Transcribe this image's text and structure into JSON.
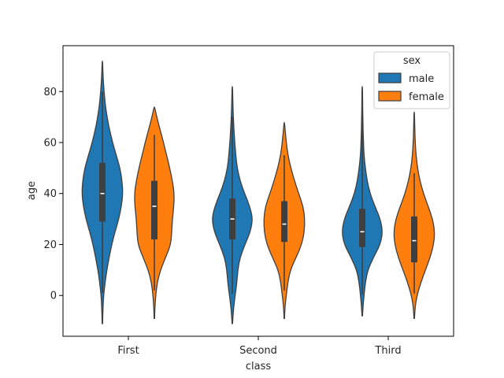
{
  "chart_data": {
    "type": "violin",
    "xlabel": "class",
    "ylabel": "age",
    "ylim": [
      -16,
      98
    ],
    "yticks": [
      0,
      20,
      40,
      60,
      80
    ],
    "categories": [
      "First",
      "Second",
      "Third"
    ],
    "legend": {
      "title": "sex",
      "position": "top-right"
    },
    "series": [
      {
        "name": "male",
        "color": "#1f77b4",
        "violins": [
          {
            "category": "First",
            "min": -11,
            "max": 92,
            "q1": 29,
            "median": 40,
            "q3": 52,
            "whisker_low": 0.92,
            "whisker_high": 80,
            "profile": [
              [
                -11,
                0.01
              ],
              [
                -5,
                0.03
              ],
              [
                0,
                0.06
              ],
              [
                5,
                0.13
              ],
              [
                10,
                0.22
              ],
              [
                15,
                0.33
              ],
              [
                20,
                0.46
              ],
              [
                25,
                0.62
              ],
              [
                30,
                0.8
              ],
              [
                35,
                0.93
              ],
              [
                40,
                1.0
              ],
              [
                45,
                0.96
              ],
              [
                50,
                0.86
              ],
              [
                55,
                0.68
              ],
              [
                60,
                0.5
              ],
              [
                65,
                0.35
              ],
              [
                70,
                0.23
              ],
              [
                75,
                0.14
              ],
              [
                80,
                0.08
              ],
              [
                85,
                0.04
              ],
              [
                92,
                0.01
              ]
            ]
          },
          {
            "category": "Second",
            "min": -11,
            "max": 82,
            "q1": 22,
            "median": 30,
            "q3": 38,
            "whisker_low": 0.67,
            "whisker_high": 70,
            "profile": [
              [
                -11,
                0.01
              ],
              [
                -5,
                0.06
              ],
              [
                0,
                0.14
              ],
              [
                5,
                0.22
              ],
              [
                10,
                0.27
              ],
              [
                15,
                0.38
              ],
              [
                20,
                0.62
              ],
              [
                25,
                0.88
              ],
              [
                30,
                1.0
              ],
              [
                35,
                0.85
              ],
              [
                40,
                0.6
              ],
              [
                45,
                0.38
              ],
              [
                50,
                0.24
              ],
              [
                55,
                0.17
              ],
              [
                60,
                0.12
              ],
              [
                65,
                0.08
              ],
              [
                70,
                0.05
              ],
              [
                75,
                0.03
              ],
              [
                82,
                0.01
              ]
            ]
          },
          {
            "category": "Third",
            "min": -8,
            "max": 82,
            "q1": 19,
            "median": 25,
            "q3": 34,
            "whisker_low": 0.42,
            "whisker_high": 74,
            "profile": [
              [
                -8,
                0.01
              ],
              [
                -3,
                0.05
              ],
              [
                0,
                0.09
              ],
              [
                5,
                0.15
              ],
              [
                10,
                0.27
              ],
              [
                15,
                0.55
              ],
              [
                20,
                0.88
              ],
              [
                25,
                1.0
              ],
              [
                30,
                0.88
              ],
              [
                35,
                0.62
              ],
              [
                40,
                0.38
              ],
              [
                45,
                0.24
              ],
              [
                50,
                0.15
              ],
              [
                55,
                0.09
              ],
              [
                60,
                0.06
              ],
              [
                65,
                0.04
              ],
              [
                70,
                0.03
              ],
              [
                75,
                0.02
              ],
              [
                82,
                0.01
              ]
            ]
          }
        ]
      },
      {
        "name": "female",
        "color": "#ff7f0e",
        "violins": [
          {
            "category": "First",
            "min": -9,
            "max": 74,
            "q1": 22,
            "median": 35,
            "q3": 45,
            "whisker_low": 2,
            "whisker_high": 63,
            "profile": [
              [
                -9,
                0.01
              ],
              [
                -4,
                0.03
              ],
              [
                0,
                0.07
              ],
              [
                5,
                0.14
              ],
              [
                10,
                0.3
              ],
              [
                15,
                0.55
              ],
              [
                20,
                0.8
              ],
              [
                25,
                0.85
              ],
              [
                30,
                0.88
              ],
              [
                35,
                0.95
              ],
              [
                40,
                0.97
              ],
              [
                45,
                0.88
              ],
              [
                50,
                0.75
              ],
              [
                55,
                0.6
              ],
              [
                60,
                0.45
              ],
              [
                65,
                0.28
              ],
              [
                70,
                0.12
              ],
              [
                74,
                0.01
              ]
            ]
          },
          {
            "category": "Second",
            "min": -9,
            "max": 68,
            "q1": 21,
            "median": 28,
            "q3": 37,
            "whisker_low": 2,
            "whisker_high": 55,
            "profile": [
              [
                -9,
                0.01
              ],
              [
                -4,
                0.04
              ],
              [
                0,
                0.1
              ],
              [
                5,
                0.17
              ],
              [
                10,
                0.3
              ],
              [
                15,
                0.58
              ],
              [
                20,
                0.85
              ],
              [
                25,
                0.98
              ],
              [
                30,
                1.0
              ],
              [
                35,
                0.92
              ],
              [
                40,
                0.7
              ],
              [
                45,
                0.5
              ],
              [
                50,
                0.32
              ],
              [
                55,
                0.18
              ],
              [
                60,
                0.1
              ],
              [
                64,
                0.05
              ],
              [
                68,
                0.01
              ]
            ]
          },
          {
            "category": "Third",
            "min": -9,
            "max": 72,
            "q1": 13,
            "median": 21.5,
            "q3": 31,
            "whisker_low": 0.75,
            "whisker_high": 48,
            "profile": [
              [
                -9,
                0.01
              ],
              [
                -4,
                0.05
              ],
              [
                0,
                0.14
              ],
              [
                5,
                0.32
              ],
              [
                10,
                0.55
              ],
              [
                15,
                0.78
              ],
              [
                20,
                0.95
              ],
              [
                25,
                1.0
              ],
              [
                30,
                0.9
              ],
              [
                35,
                0.68
              ],
              [
                40,
                0.45
              ],
              [
                45,
                0.28
              ],
              [
                50,
                0.16
              ],
              [
                55,
                0.09
              ],
              [
                60,
                0.05
              ],
              [
                65,
                0.03
              ],
              [
                72,
                0.01
              ]
            ]
          }
        ]
      }
    ]
  }
}
